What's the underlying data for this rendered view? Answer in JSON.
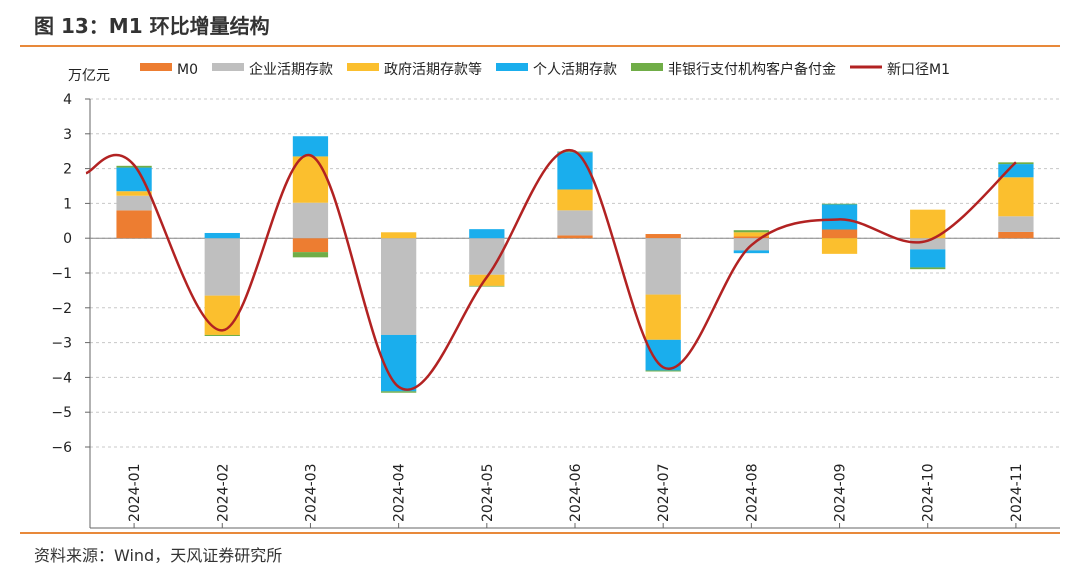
{
  "figure": {
    "title": "图 13：M1 环比增量结构",
    "source": "资料来源：Wind，天风证券研究所"
  },
  "chart_data": {
    "type": "bar",
    "stacked": true,
    "unit_label": "万亿元",
    "categories": [
      "2024-01",
      "2024-02",
      "2024-03",
      "2024-04",
      "2024-05",
      "2024-06",
      "2024-07",
      "2024-08",
      "2024-09",
      "2024-10",
      "2024-11"
    ],
    "ylim": [
      -6,
      4
    ],
    "yticks": [
      4,
      3,
      2,
      1,
      0,
      -1,
      -2,
      -3,
      -4,
      -5,
      -6
    ],
    "grid": "horizontal-dashed",
    "legend": "top",
    "series": [
      {
        "name": "M0",
        "color": "#ed7d31",
        "values": [
          0.8,
          0.0,
          -0.4,
          0.0,
          0.0,
          0.08,
          0.12,
          0.05,
          0.25,
          0.0,
          0.18
        ]
      },
      {
        "name": "企业活期存款",
        "color": "#bfbfbf",
        "values": [
          0.42,
          -1.65,
          1.02,
          -2.78,
          -1.05,
          0.72,
          -1.62,
          -0.35,
          0.0,
          -0.32,
          0.45
        ]
      },
      {
        "name": "政府活期存款等",
        "color": "#fbbf2e",
        "values": [
          0.13,
          -1.13,
          1.33,
          0.17,
          -0.32,
          0.6,
          -1.3,
          0.12,
          -0.45,
          0.82,
          1.12
        ]
      },
      {
        "name": "个人活期存款",
        "color": "#1aaeed",
        "values": [
          0.68,
          0.15,
          0.58,
          -1.62,
          0.26,
          1.07,
          -0.88,
          -0.08,
          0.72,
          -0.52,
          0.38
        ]
      },
      {
        "name": "非银行支付机构客户备付金",
        "color": "#70ad47",
        "values": [
          0.05,
          -0.03,
          -0.15,
          -0.04,
          -0.02,
          0.02,
          -0.03,
          0.06,
          0.02,
          -0.05,
          0.05
        ]
      }
    ],
    "line": {
      "name": "新口径M1",
      "color": "#b22222",
      "values": [
        2.1,
        -2.65,
        2.38,
        -4.27,
        -1.12,
        2.49,
        -3.71,
        -0.2,
        0.54,
        -0.07,
        2.18
      ]
    }
  }
}
